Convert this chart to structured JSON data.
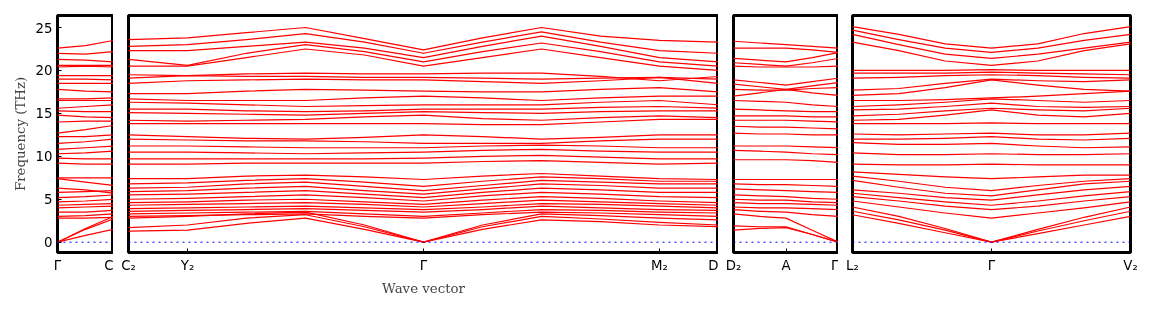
{
  "chart_data": [
    {
      "type": "line",
      "ylabel": "Frequency (THz)",
      "categories": [
        "Γ",
        null,
        "C"
      ],
      "ylim": [
        -1.2,
        26.4
      ],
      "yticks": [
        0,
        5,
        10,
        15,
        20,
        25
      ],
      "ref_lines": [
        {
          "axis": "y",
          "value": 0,
          "color": "#0000ff",
          "line_style": "dotted"
        }
      ],
      "series": [
        {
          "color": "#ff0000",
          "values": [
            0,
            0.8,
            1.5
          ]
        },
        {
          "color": "#ff0000",
          "values": [
            0,
            1.5,
            2.7
          ]
        },
        {
          "color": "#ff0000",
          "values": [
            0,
            1.6,
            3.0
          ]
        },
        {
          "color": "#ff0000",
          "values": [
            2.8,
            2.8,
            2.9
          ]
        },
        {
          "color": "#ff0000",
          "values": [
            3.0,
            3.1,
            3.3
          ]
        },
        {
          "color": "#ff0000",
          "values": [
            3.5,
            3.5,
            3.7
          ]
        },
        {
          "color": "#ff0000",
          "values": [
            4.0,
            4.1,
            4.2
          ]
        },
        {
          "color": "#ff0000",
          "values": [
            4.3,
            4.4,
            4.5
          ]
        },
        {
          "color": "#ff0000",
          "values": [
            4.7,
            4.8,
            5.0
          ]
        },
        {
          "color": "#ff0000",
          "values": [
            5.2,
            5.3,
            5.5
          ]
        },
        {
          "color": "#ff0000",
          "values": [
            5.8,
            5.9,
            6.0
          ]
        },
        {
          "color": "#ff0000",
          "values": [
            6.3,
            6.1,
            5.7
          ]
        },
        {
          "color": "#ff0000",
          "values": [
            7.4,
            7.0,
            6.6
          ]
        },
        {
          "color": "#ff0000",
          "values": [
            7.5,
            7.5,
            7.5
          ]
        },
        {
          "color": "#ff0000",
          "values": [
            9.2,
            9.1,
            9.1
          ]
        },
        {
          "color": "#ff0000",
          "values": [
            9.8,
            9.7,
            9.7
          ]
        },
        {
          "color": "#ff0000",
          "values": [
            10.3,
            10.4,
            10.6
          ]
        },
        {
          "color": "#ff0000",
          "values": [
            10.8,
            11.0,
            11.2
          ]
        },
        {
          "color": "#ff0000",
          "values": [
            11.5,
            11.7,
            12.0
          ]
        },
        {
          "color": "#ff0000",
          "values": [
            12.3,
            12.3,
            12.5
          ]
        },
        {
          "color": "#ff0000",
          "values": [
            12.7,
            13.1,
            13.6
          ]
        },
        {
          "color": "#ff0000",
          "values": [
            14.0,
            14.1,
            14.1
          ]
        },
        {
          "color": "#ff0000",
          "values": [
            14.8,
            14.6,
            14.5
          ]
        },
        {
          "color": "#ff0000",
          "values": [
            15.3,
            15.2,
            15.2
          ]
        },
        {
          "color": "#ff0000",
          "values": [
            15.6,
            15.8,
            16.0
          ]
        },
        {
          "color": "#ff0000",
          "values": [
            16.5,
            16.5,
            16.5
          ]
        },
        {
          "color": "#ff0000",
          "values": [
            16.7,
            16.7,
            16.8
          ]
        },
        {
          "color": "#ff0000",
          "values": [
            17.8,
            17.6,
            17.5
          ]
        },
        {
          "color": "#ff0000",
          "values": [
            18.5,
            18.5,
            18.5
          ]
        },
        {
          "color": "#ff0000",
          "values": [
            19.0,
            19.0,
            18.9
          ]
        },
        {
          "color": "#ff0000",
          "values": [
            19.4,
            19.4,
            19.4
          ]
        },
        {
          "color": "#ff0000",
          "values": [
            20.4,
            20.5,
            20.4
          ]
        },
        {
          "color": "#ff0000",
          "values": [
            20.6,
            20.6,
            20.6
          ]
        },
        {
          "color": "#ff0000",
          "values": [
            21.3,
            21.2,
            21.0
          ]
        },
        {
          "color": "#ff0000",
          "values": [
            22.0,
            21.9,
            22.2
          ]
        },
        {
          "color": "#ff0000",
          "values": [
            22.6,
            22.9,
            23.5
          ]
        }
      ]
    },
    {
      "type": "line",
      "xlabel": "Wave vector",
      "categories": [
        "C₂",
        "Y₂",
        null,
        null,
        null,
        "Γ",
        null,
        null,
        null,
        "M₂",
        "D"
      ],
      "ylim": [
        -1.2,
        26.4
      ],
      "yticks": [
        0,
        5,
        10,
        15,
        20,
        25
      ],
      "tick_labels": "x",
      "ref_lines": [
        {
          "axis": "y",
          "value": 0,
          "color": "#0000ff",
          "line_style": "dotted"
        }
      ],
      "series": [
        {
          "color": "#ff0000",
          "values": [
            1.3,
            1.4,
            2.2,
            2.8,
            1.5,
            0,
            1.5,
            2.6,
            2.4,
            2.0,
            1.8
          ]
        },
        {
          "color": "#ff0000",
          "values": [
            1.7,
            2.0,
            2.8,
            3.2,
            1.8,
            0,
            1.8,
            3.0,
            2.7,
            2.3,
            2.0
          ]
        },
        {
          "color": "#ff0000",
          "values": [
            2.8,
            3.0,
            3.3,
            3.5,
            2.0,
            0,
            2.0,
            3.3,
            3.1,
            2.8,
            2.6
          ]
        },
        {
          "color": "#ff0000",
          "values": [
            3.0,
            3.1,
            3.2,
            3.3,
            3.0,
            2.8,
            3.2,
            3.5,
            3.4,
            3.2,
            3.0
          ]
        },
        {
          "color": "#ff0000",
          "values": [
            3.3,
            3.4,
            3.5,
            3.6,
            3.3,
            3.0,
            3.4,
            3.8,
            3.7,
            3.5,
            3.4
          ]
        },
        {
          "color": "#ff0000",
          "values": [
            3.6,
            3.7,
            3.8,
            3.9,
            3.7,
            3.5,
            3.8,
            4.2,
            4.0,
            3.8,
            3.7
          ]
        },
        {
          "color": "#ff0000",
          "values": [
            3.9,
            4.0,
            4.1,
            4.2,
            4.0,
            3.8,
            4.1,
            4.5,
            4.4,
            4.2,
            4.0
          ]
        },
        {
          "color": "#ff0000",
          "values": [
            4.3,
            4.4,
            4.5,
            4.6,
            4.4,
            4.1,
            4.5,
            4.9,
            4.7,
            4.5,
            4.3
          ]
        },
        {
          "color": "#ff0000",
          "values": [
            4.6,
            4.7,
            4.9,
            5.0,
            4.7,
            4.4,
            4.9,
            5.3,
            5.1,
            4.8,
            4.6
          ]
        },
        {
          "color": "#ff0000",
          "values": [
            5.0,
            5.1,
            5.3,
            5.5,
            5.2,
            4.8,
            5.4,
            5.8,
            5.6,
            5.3,
            5.2
          ]
        },
        {
          "color": "#ff0000",
          "values": [
            5.5,
            5.6,
            5.8,
            6.0,
            5.6,
            5.2,
            5.8,
            6.3,
            6.1,
            5.8,
            5.8
          ]
        },
        {
          "color": "#ff0000",
          "values": [
            5.9,
            6.0,
            6.3,
            6.5,
            6.0,
            5.6,
            6.2,
            6.8,
            6.6,
            6.3,
            6.3
          ]
        },
        {
          "color": "#ff0000",
          "values": [
            6.3,
            6.4,
            6.8,
            7.0,
            6.5,
            6.0,
            6.6,
            7.2,
            7.0,
            6.8,
            6.8
          ]
        },
        {
          "color": "#ff0000",
          "values": [
            6.8,
            6.9,
            7.2,
            7.4,
            7.0,
            6.5,
            7.1,
            7.6,
            7.4,
            7.1,
            7.1
          ]
        },
        {
          "color": "#ff0000",
          "values": [
            7.4,
            7.4,
            7.7,
            7.8,
            7.6,
            7.3,
            7.7,
            8.0,
            7.7,
            7.4,
            7.3
          ]
        },
        {
          "color": "#ff0000",
          "values": [
            9.1,
            9.1,
            9.2,
            9.2,
            9.2,
            9.2,
            9.4,
            9.5,
            9.3,
            9.1,
            9.2
          ]
        },
        {
          "color": "#ff0000",
          "values": [
            9.7,
            9.7,
            9.7,
            9.7,
            9.7,
            9.8,
            10.0,
            10.1,
            9.9,
            9.7,
            9.7
          ]
        },
        {
          "color": "#ff0000",
          "values": [
            10.5,
            10.5,
            10.4,
            10.3,
            10.4,
            10.5,
            10.7,
            10.8,
            10.6,
            10.5,
            10.5
          ]
        },
        {
          "color": "#ff0000",
          "values": [
            11.2,
            11.2,
            11.1,
            11.0,
            11.0,
            11.0,
            11.2,
            11.3,
            11.2,
            11.0,
            11.0
          ]
        },
        {
          "color": "#ff0000",
          "values": [
            12.0,
            11.9,
            11.8,
            11.8,
            11.7,
            11.5,
            11.5,
            11.5,
            11.8,
            12.0,
            12.0
          ]
        },
        {
          "color": "#ff0000",
          "values": [
            12.5,
            12.3,
            12.1,
            12.0,
            12.2,
            12.5,
            12.3,
            12.0,
            12.2,
            12.5,
            12.5
          ]
        },
        {
          "color": "#ff0000",
          "values": [
            13.8,
            13.8,
            13.8,
            13.8,
            13.8,
            13.8,
            13.7,
            13.7,
            14.0,
            14.3,
            14.3
          ]
        },
        {
          "color": "#ff0000",
          "values": [
            14.2,
            14.1,
            14.2,
            14.3,
            14.6,
            14.8,
            14.4,
            14.2,
            14.5,
            14.7,
            14.5
          ]
        },
        {
          "color": "#ff0000",
          "values": [
            15.1,
            15.0,
            14.9,
            14.8,
            15.0,
            15.2,
            15.1,
            15.0,
            15.2,
            15.3,
            15.3
          ]
        },
        {
          "color": "#ff0000",
          "values": [
            15.5,
            15.5,
            15.3,
            15.2,
            15.3,
            15.5,
            15.5,
            15.5,
            15.7,
            15.8,
            15.6
          ]
        },
        {
          "color": "#ff0000",
          "values": [
            16.3,
            16.2,
            16.0,
            15.8,
            15.9,
            16.0,
            16.0,
            16.0,
            16.3,
            16.5,
            16.0
          ]
        },
        {
          "color": "#ff0000",
          "values": [
            16.7,
            16.5,
            16.5,
            16.5,
            16.8,
            17.0,
            16.8,
            16.5,
            16.8,
            17.0,
            17.0
          ]
        },
        {
          "color": "#ff0000",
          "values": [
            17.3,
            17.3,
            17.6,
            17.8,
            17.7,
            17.6,
            17.5,
            17.5,
            17.8,
            18.0,
            17.5
          ]
        },
        {
          "color": "#ff0000",
          "values": [
            18.5,
            18.8,
            18.9,
            19.0,
            18.9,
            18.9,
            18.7,
            18.5,
            18.8,
            19.2,
            18.5
          ]
        },
        {
          "color": "#ff0000",
          "values": [
            19.1,
            19.4,
            19.3,
            19.3,
            19.2,
            19.2,
            19.1,
            19.0,
            19.1,
            19.2,
            19.0
          ]
        },
        {
          "color": "#ff0000",
          "values": [
            19.5,
            19.4,
            19.6,
            19.7,
            19.6,
            19.6,
            19.7,
            19.7,
            19.3,
            18.8,
            19.3
          ]
        },
        {
          "color": "#ff0000",
          "values": [
            20.5,
            20.5,
            21.5,
            22.5,
            21.8,
            20.5,
            21.5,
            22.5,
            21.5,
            20.5,
            20.0
          ]
        },
        {
          "color": "#ff0000",
          "values": [
            21.3,
            20.6,
            22.0,
            23.0,
            22.2,
            21.0,
            22.2,
            23.2,
            22.2,
            21.0,
            20.5
          ]
        },
        {
          "color": "#ff0000",
          "values": [
            22.3,
            22.3,
            22.8,
            23.3,
            22.6,
            21.5,
            22.8,
            24.0,
            22.8,
            21.5,
            21.0
          ]
        },
        {
          "color": "#ff0000",
          "values": [
            22.8,
            23.0,
            23.6,
            24.3,
            23.3,
            22.0,
            23.3,
            24.5,
            23.3,
            22.3,
            22.0
          ]
        },
        {
          "color": "#ff0000",
          "values": [
            23.6,
            23.8,
            24.4,
            25.0,
            23.7,
            22.4,
            23.8,
            25.0,
            24.0,
            23.5,
            23.3
          ]
        }
      ]
    },
    {
      "type": "line",
      "categories": [
        "D₂",
        null,
        "A",
        null,
        "Γ"
      ],
      "ylim": [
        -1.2,
        26.4
      ],
      "yticks": [
        0,
        5,
        10,
        15,
        20,
        25
      ],
      "tick_labels": "x",
      "ref_lines": [
        {
          "axis": "y",
          "value": 0,
          "color": "#0000ff",
          "line_style": "dotted"
        }
      ],
      "series": [
        {
          "color": "#ff0000",
          "values": [
            1.4,
            1.6,
            1.7,
            0.9,
            0
          ]
        },
        {
          "color": "#ff0000",
          "values": [
            1.9,
            1.8,
            1.8,
            0.9,
            0
          ]
        },
        {
          "color": "#ff0000",
          "values": [
            3.3,
            3.0,
            2.8,
            1.4,
            0
          ]
        },
        {
          "color": "#ff0000",
          "values": [
            3.8,
            3.6,
            3.5,
            3.2,
            3.0
          ]
        },
        {
          "color": "#ff0000",
          "values": [
            4.1,
            4.0,
            4.0,
            3.9,
            3.8
          ]
        },
        {
          "color": "#ff0000",
          "values": [
            4.6,
            4.5,
            4.5,
            4.4,
            4.3
          ]
        },
        {
          "color": "#ff0000",
          "values": [
            5.0,
            4.9,
            4.9,
            4.7,
            4.6
          ]
        },
        {
          "color": "#ff0000",
          "values": [
            5.5,
            5.4,
            5.3,
            5.1,
            5.0
          ]
        },
        {
          "color": "#ff0000",
          "values": [
            6.2,
            6.1,
            6.0,
            5.9,
            5.8
          ]
        },
        {
          "color": "#ff0000",
          "values": [
            6.8,
            6.7,
            6.7,
            6.6,
            6.5
          ]
        },
        {
          "color": "#ff0000",
          "values": [
            7.3,
            7.3,
            7.3,
            7.3,
            7.3
          ]
        },
        {
          "color": "#ff0000",
          "values": [
            9.6,
            9.6,
            9.6,
            9.5,
            9.3
          ]
        },
        {
          "color": "#ff0000",
          "values": [
            10.7,
            10.6,
            10.5,
            10.3,
            10.2
          ]
        },
        {
          "color": "#ff0000",
          "values": [
            11.2,
            11.2,
            11.2,
            11.1,
            11.0
          ]
        },
        {
          "color": "#ff0000",
          "values": [
            12.7,
            12.6,
            12.6,
            12.5,
            12.5
          ]
        },
        {
          "color": "#ff0000",
          "values": [
            13.5,
            13.4,
            13.4,
            13.3,
            13.2
          ]
        },
        {
          "color": "#ff0000",
          "values": [
            14.2,
            14.2,
            14.2,
            14.1,
            14.0
          ]
        },
        {
          "color": "#ff0000",
          "values": [
            14.7,
            14.7,
            14.7,
            14.6,
            14.6
          ]
        },
        {
          "color": "#ff0000",
          "values": [
            15.5,
            15.4,
            15.3,
            15.2,
            15.2
          ]
        },
        {
          "color": "#ff0000",
          "values": [
            16.5,
            16.4,
            16.3,
            16.0,
            15.8
          ]
        },
        {
          "color": "#ff0000",
          "values": [
            17.0,
            17.4,
            17.8,
            17.4,
            17.1
          ]
        },
        {
          "color": "#ff0000",
          "values": [
            17.8,
            17.7,
            17.7,
            17.9,
            18.0
          ]
        },
        {
          "color": "#ff0000",
          "values": [
            18.4,
            18.1,
            17.8,
            18.2,
            18.6
          ]
        },
        {
          "color": "#ff0000",
          "values": [
            18.9,
            18.6,
            18.3,
            18.7,
            19.1
          ]
        },
        {
          "color": "#ff0000",
          "values": [
            20.5,
            20.4,
            20.4,
            20.4,
            20.5
          ]
        },
        {
          "color": "#ff0000",
          "values": [
            20.9,
            20.7,
            20.5,
            20.9,
            21.4
          ]
        },
        {
          "color": "#ff0000",
          "values": [
            21.4,
            21.2,
            21.0,
            21.5,
            22.1
          ]
        },
        {
          "color": "#ff0000",
          "values": [
            22.6,
            22.6,
            22.6,
            22.4,
            22.1
          ]
        },
        {
          "color": "#ff0000",
          "values": [
            23.4,
            23.2,
            23.0,
            22.8,
            22.6
          ]
        }
      ]
    },
    {
      "type": "line",
      "categories": [
        "L₂",
        null,
        null,
        "Γ",
        null,
        null,
        "V₂"
      ],
      "ylim": [
        -1.2,
        26.4
      ],
      "yticks": [
        0,
        5,
        10,
        15,
        20,
        25
      ],
      "tick_labels": "x",
      "ref_lines": [
        {
          "axis": "y",
          "value": 0,
          "color": "#0000ff",
          "line_style": "dotted"
        }
      ],
      "series": [
        {
          "color": "#ff0000",
          "values": [
            3.2,
            2.2,
            1.1,
            0,
            1.0,
            2.0,
            3.0
          ]
        },
        {
          "color": "#ff0000",
          "values": [
            3.6,
            2.6,
            1.4,
            0,
            1.3,
            2.5,
            3.6
          ]
        },
        {
          "color": "#ff0000",
          "values": [
            4.1,
            3.0,
            1.6,
            0,
            1.5,
            2.9,
            4.1
          ]
        },
        {
          "color": "#ff0000",
          "values": [
            4.8,
            4.1,
            3.4,
            2.8,
            3.4,
            4.0,
            4.7
          ]
        },
        {
          "color": "#ff0000",
          "values": [
            5.3,
            4.8,
            4.2,
            3.8,
            4.2,
            4.8,
            5.3
          ]
        },
        {
          "color": "#ff0000",
          "values": [
            5.7,
            5.2,
            4.7,
            4.3,
            4.8,
            5.4,
            5.9
          ]
        },
        {
          "color": "#ff0000",
          "values": [
            6.1,
            5.7,
            5.2,
            4.9,
            5.5,
            6.1,
            6.5
          ]
        },
        {
          "color": "#ff0000",
          "values": [
            7.2,
            6.4,
            5.7,
            5.4,
            6.1,
            6.8,
            7.1
          ]
        },
        {
          "color": "#ff0000",
          "values": [
            7.7,
            7.1,
            6.4,
            6.0,
            6.6,
            7.1,
            7.4
          ]
        },
        {
          "color": "#ff0000",
          "values": [
            8.2,
            7.9,
            7.6,
            7.4,
            7.6,
            7.8,
            7.8
          ]
        },
        {
          "color": "#ff0000",
          "values": [
            9.1,
            9.0,
            9.0,
            9.1,
            9.0,
            9.0,
            9.0
          ]
        },
        {
          "color": "#ff0000",
          "values": [
            10.4,
            10.2,
            10.2,
            10.3,
            10.2,
            10.2,
            10.3
          ]
        },
        {
          "color": "#ff0000",
          "values": [
            11.6,
            11.4,
            11.4,
            11.5,
            11.2,
            11.0,
            11.1
          ]
        },
        {
          "color": "#ff0000",
          "values": [
            12.0,
            12.0,
            12.1,
            12.3,
            12.0,
            11.9,
            12.1
          ]
        },
        {
          "color": "#ff0000",
          "values": [
            12.6,
            12.5,
            12.6,
            12.7,
            12.5,
            12.5,
            12.7
          ]
        },
        {
          "color": "#ff0000",
          "values": [
            13.8,
            13.8,
            13.8,
            13.9,
            13.8,
            13.8,
            13.8
          ]
        },
        {
          "color": "#ff0000",
          "values": [
            14.2,
            14.3,
            14.8,
            15.4,
            14.8,
            14.6,
            15.0
          ]
        },
        {
          "color": "#ff0000",
          "values": [
            14.7,
            14.9,
            15.3,
            15.6,
            15.4,
            15.3,
            15.6
          ]
        },
        {
          "color": "#ff0000",
          "values": [
            15.4,
            15.5,
            15.8,
            16.2,
            15.8,
            15.7,
            15.8
          ]
        },
        {
          "color": "#ff0000",
          "values": [
            15.8,
            16.0,
            16.3,
            16.7,
            16.5,
            16.3,
            16.5
          ]
        },
        {
          "color": "#ff0000",
          "values": [
            16.5,
            16.5,
            16.6,
            16.8,
            17.0,
            17.3,
            17.6
          ]
        },
        {
          "color": "#ff0000",
          "values": [
            17.1,
            17.3,
            18.0,
            18.9,
            18.3,
            17.8,
            17.6
          ]
        },
        {
          "color": "#ff0000",
          "values": [
            17.7,
            17.9,
            18.5,
            19.0,
            18.8,
            18.7,
            18.9
          ]
        },
        {
          "color": "#ff0000",
          "values": [
            19.1,
            19.2,
            19.4,
            19.5,
            19.4,
            19.2,
            19.1
          ]
        },
        {
          "color": "#ff0000",
          "values": [
            19.7,
            19.7,
            19.7,
            19.8,
            19.7,
            19.6,
            19.5
          ]
        },
        {
          "color": "#ff0000",
          "values": [
            20.0,
            20.0,
            20.0,
            20.1,
            20.0,
            20.0,
            20.0
          ]
        },
        {
          "color": "#ff0000",
          "values": [
            23.3,
            22.3,
            21.1,
            20.6,
            21.1,
            22.3,
            23.1
          ]
        },
        {
          "color": "#ff0000",
          "values": [
            24.2,
            23.0,
            21.9,
            21.4,
            21.9,
            22.6,
            23.3
          ]
        },
        {
          "color": "#ff0000",
          "values": [
            24.7,
            23.6,
            22.6,
            22.1,
            22.6,
            23.5,
            24.2
          ]
        },
        {
          "color": "#ff0000",
          "values": [
            25.1,
            24.2,
            23.1,
            22.6,
            23.1,
            24.3,
            25.1
          ]
        }
      ]
    }
  ]
}
